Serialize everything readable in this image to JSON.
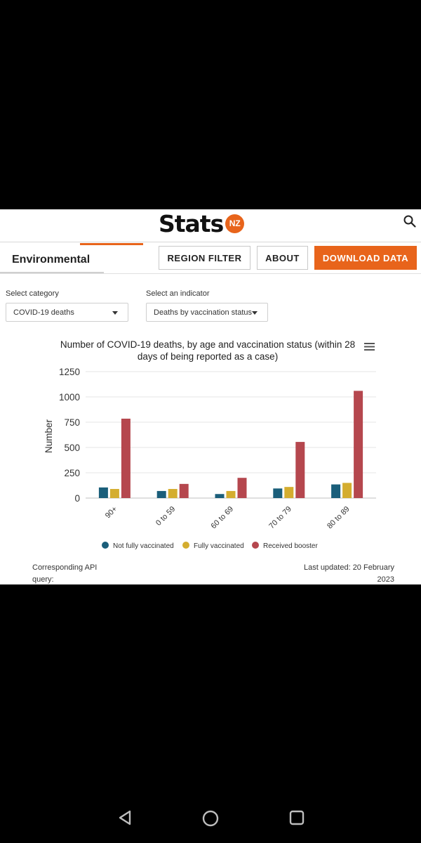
{
  "header": {
    "logo_word": "Stats",
    "logo_badge": "NZ"
  },
  "nav": {
    "active_tab": "Environmental",
    "buttons": [
      "REGION FILTER",
      "ABOUT",
      "DOWNLOAD DATA"
    ]
  },
  "filters": {
    "category_label": "Select category",
    "category_value": "COVID-19 deaths",
    "indicator_label": "Select an indicator",
    "indicator_value": "Deaths by vaccination status"
  },
  "chart_data": {
    "type": "bar",
    "title": "Number of COVID-19 deaths, by age and vaccination status (within 28 days of being reported as a case)",
    "xlabel": "",
    "ylabel": "Number",
    "ylim": [
      0,
      1250
    ],
    "yticks": [
      0,
      250,
      500,
      750,
      1000,
      1250
    ],
    "categories": [
      "90+",
      "0 to 59",
      "60 to 69",
      "70 to 79",
      "80 to 89"
    ],
    "series": [
      {
        "name": "Not fully vaccinated",
        "color": "#1a5e7a",
        "values": [
          105,
          70,
          40,
          95,
          135
        ]
      },
      {
        "name": "Fully vaccinated",
        "color": "#d4ad2f",
        "values": [
          90,
          90,
          70,
          110,
          150
        ]
      },
      {
        "name": "Received booster",
        "color": "#b5474e",
        "values": [
          785,
          140,
          200,
          555,
          1060
        ]
      }
    ],
    "grid": true,
    "legend": "bottom"
  },
  "footer": {
    "api_label": "Corresponding API query:",
    "last_updated": "Last updated: 20 February 2023"
  },
  "system_nav": {
    "icons": [
      "back-icon",
      "home-icon",
      "recents-icon"
    ]
  }
}
